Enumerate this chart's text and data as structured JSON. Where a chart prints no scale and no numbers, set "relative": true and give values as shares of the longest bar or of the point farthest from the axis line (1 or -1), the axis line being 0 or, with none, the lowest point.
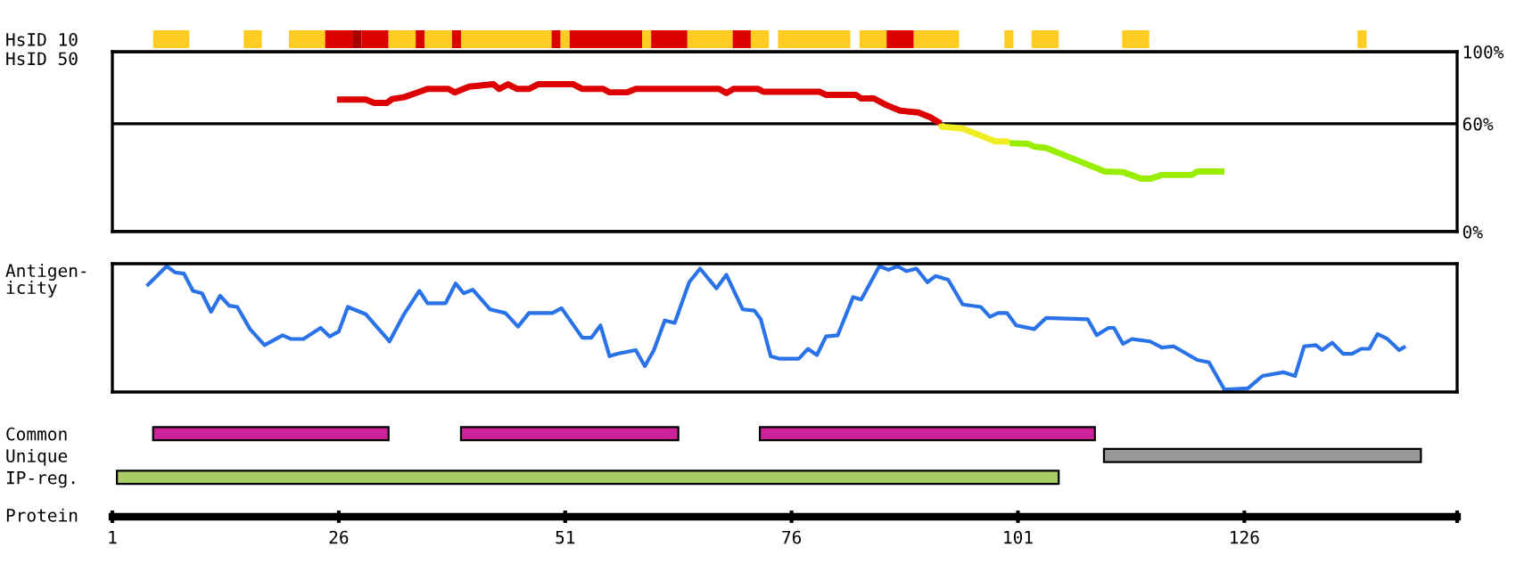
{
  "chart_data": [
    {
      "type": "bar",
      "orientation": "horizontal",
      "categories": [
        "HsID 10"
      ],
      "xlim": [
        1,
        149.5
      ],
      "tick_labels": "y",
      "series": [
        {
          "color": "#ffcc22",
          "values": [
            4
          ],
          "base": [
            5.5
          ]
        },
        {
          "color": "#ffcc22",
          "values": [
            2
          ],
          "base": [
            15.5
          ]
        },
        {
          "color": "#ffcc22",
          "values": [
            4
          ],
          "base": [
            20.5
          ]
        },
        {
          "color": "#dd0000",
          "values": [
            3
          ],
          "base": [
            24.5
          ]
        },
        {
          "color": "#aa0000",
          "values": [
            1
          ],
          "base": [
            27.5
          ]
        },
        {
          "color": "#dd0000",
          "values": [
            3
          ],
          "base": [
            28.5
          ]
        },
        {
          "color": "#ffcc22",
          "values": [
            3
          ],
          "base": [
            31.5
          ]
        },
        {
          "color": "#dd0000",
          "values": [
            1
          ],
          "base": [
            34.5
          ]
        },
        {
          "color": "#ffcc22",
          "values": [
            3
          ],
          "base": [
            35.5
          ]
        },
        {
          "color": "#dd0000",
          "values": [
            1
          ],
          "base": [
            38.5
          ]
        },
        {
          "color": "#ffcc22",
          "values": [
            10
          ],
          "base": [
            39.5
          ]
        },
        {
          "color": "#dd0000",
          "values": [
            1
          ],
          "base": [
            49.5
          ]
        },
        {
          "color": "#ffcc22",
          "values": [
            1
          ],
          "base": [
            50.5
          ]
        },
        {
          "color": "#dd0000",
          "values": [
            8
          ],
          "base": [
            51.5
          ]
        },
        {
          "color": "#ffcc22",
          "values": [
            1
          ],
          "base": [
            59.5
          ]
        },
        {
          "color": "#dd0000",
          "values": [
            4
          ],
          "base": [
            60.5
          ]
        },
        {
          "color": "#ffcc22",
          "values": [
            5
          ],
          "base": [
            64.5
          ]
        },
        {
          "color": "#dd0000",
          "values": [
            2
          ],
          "base": [
            69.5
          ]
        },
        {
          "color": "#ffcc22",
          "values": [
            2
          ],
          "base": [
            71.5
          ]
        },
        {
          "color": "#ffcc22",
          "values": [
            8
          ],
          "base": [
            74.5
          ]
        },
        {
          "color": "#ffcc22",
          "values": [
            3
          ],
          "base": [
            83.5
          ]
        },
        {
          "color": "#dd0000",
          "values": [
            3
          ],
          "base": [
            86.5
          ]
        },
        {
          "color": "#ffcc22",
          "values": [
            5
          ],
          "base": [
            89.5
          ]
        },
        {
          "color": "#ffcc22",
          "values": [
            1
          ],
          "base": [
            99.5
          ]
        },
        {
          "color": "#ffcc22",
          "values": [
            3
          ],
          "base": [
            102.5
          ]
        },
        {
          "color": "#ffcc22",
          "values": [
            3
          ],
          "base": [
            112.5
          ]
        },
        {
          "color": "#ffcc22",
          "values": [
            1
          ],
          "base": [
            138.5
          ]
        }
      ]
    },
    {
      "type": "line",
      "ylabel": "HsID 50",
      "xlim": [
        1,
        149.5
      ],
      "ylim": [
        0,
        100
      ],
      "yticks": [
        {
          "value": 0,
          "label": "0%"
        },
        {
          "value": 60,
          "label": "60%"
        },
        {
          "value": 100,
          "label": "100%"
        }
      ],
      "grid": "y",
      "tick_labels": "y",
      "series": [
        {
          "color": "#dd0000",
          "x": [
            25.8,
            29.0,
            29.9,
            31.3,
            31.9,
            33.2,
            34.5,
            35.8,
            38.1,
            38.8,
            40.4,
            43.1,
            43.7,
            44.7,
            45.7,
            47.0,
            48.0,
            51.9,
            52.9,
            55.2,
            55.9,
            57.8,
            58.8,
            68.0,
            68.8,
            69.6,
            72.3,
            72.9,
            79.1,
            79.8,
            83.1,
            83.7,
            85.1,
            86.4,
            88.0,
            90.0,
            91.3,
            92.5
          ],
          "values": [
            73.4,
            73.4,
            71.5,
            71.5,
            73.7,
            74.7,
            77.0,
            79.3,
            79.3,
            77.4,
            80.6,
            81.9,
            79.3,
            81.9,
            79.3,
            79.3,
            81.9,
            81.9,
            79.3,
            79.3,
            77.4,
            77.4,
            79.3,
            79.3,
            77.0,
            79.3,
            79.3,
            77.7,
            77.7,
            76.0,
            76.0,
            74.0,
            74.0,
            70.5,
            67.2,
            66.2,
            63.6,
            60.0
          ]
        },
        {
          "color": "#eeee22",
          "x": [
            92.5,
            92.6,
            94.9,
            98.5,
            99.8,
            100.1
          ],
          "values": [
            60.0,
            58.3,
            57.3,
            50.1,
            50.1,
            49.2
          ]
        },
        {
          "color": "#99ee00",
          "x": [
            100.1,
            102.1,
            102.8,
            104.1,
            107.7,
            110.6,
            112.6,
            114.6,
            115.7,
            116.9,
            120.2,
            120.8,
            123.8
          ],
          "values": [
            49.2,
            48.8,
            47.2,
            46.5,
            39.3,
            33.4,
            33.1,
            29.5,
            29.5,
            31.5,
            31.5,
            33.4,
            33.4
          ]
        }
      ]
    },
    {
      "type": "line",
      "ylabel": "Antigen-\nicity",
      "relative": true,
      "xlim": [
        1,
        149.5
      ],
      "tick_labels": false,
      "series": [
        {
          "color": "#2a72e8",
          "x": [
            4.8,
            7.0,
            7.9,
            8.9,
            9.9,
            10.9,
            11.9,
            12.9,
            13.9,
            14.8,
            16.2,
            17.8,
            19.8,
            20.7,
            22.1,
            24.0,
            25.0,
            26.0,
            27.0,
            29.0,
            31.6,
            33.2,
            34.9,
            35.8,
            37.8,
            38.9,
            39.8,
            40.8,
            42.7,
            44.4,
            45.8,
            47.0,
            49.6,
            50.6,
            52.9,
            53.9,
            54.9,
            55.9,
            56.8,
            58.8,
            59.8,
            60.8,
            62.0,
            63.1,
            64.7,
            65.9,
            67.7,
            68.8,
            70.6,
            71.9,
            72.6,
            73.7,
            74.6,
            76.8,
            77.8,
            78.8,
            79.8,
            81.1,
            82.8,
            83.7,
            85.7,
            86.7,
            87.7,
            88.7,
            89.8,
            91.0,
            91.9,
            93.3,
            94.9,
            96.9,
            97.9,
            98.8,
            99.8,
            100.8,
            102.8,
            104.1,
            108.7,
            109.7,
            111.0,
            111.6,
            112.6,
            113.6,
            115.6,
            116.9,
            118.2,
            120.8,
            122.1,
            123.8,
            126.4,
            128.0,
            130.3,
            131.6,
            132.6,
            133.9,
            134.6,
            135.7,
            136.9,
            137.9,
            138.9,
            139.8,
            140.7,
            141.8,
            143.1,
            143.8
          ],
          "values": [
            0.84,
            1.0,
            0.95,
            0.94,
            0.8,
            0.78,
            0.63,
            0.76,
            0.68,
            0.67,
            0.49,
            0.36,
            0.44,
            0.41,
            0.41,
            0.5,
            0.43,
            0.47,
            0.67,
            0.61,
            0.39,
            0.61,
            0.8,
            0.7,
            0.7,
            0.86,
            0.78,
            0.81,
            0.65,
            0.62,
            0.51,
            0.62,
            0.62,
            0.66,
            0.42,
            0.42,
            0.52,
            0.27,
            0.29,
            0.32,
            0.19,
            0.32,
            0.56,
            0.54,
            0.87,
            0.98,
            0.82,
            0.93,
            0.65,
            0.64,
            0.57,
            0.27,
            0.25,
            0.25,
            0.33,
            0.28,
            0.43,
            0.44,
            0.75,
            0.73,
            1.0,
            0.97,
            1.0,
            0.96,
            0.98,
            0.87,
            0.92,
            0.89,
            0.69,
            0.67,
            0.59,
            0.62,
            0.62,
            0.52,
            0.49,
            0.58,
            0.57,
            0.44,
            0.5,
            0.5,
            0.37,
            0.41,
            0.39,
            0.34,
            0.35,
            0.24,
            0.22,
            0.0,
            0.01,
            0.11,
            0.14,
            0.11,
            0.35,
            0.36,
            0.32,
            0.38,
            0.29,
            0.29,
            0.33,
            0.33,
            0.45,
            0.41,
            0.32,
            0.35
          ]
        }
      ]
    },
    {
      "type": "bar",
      "orientation": "horizontal",
      "categories": [
        "Common",
        "Unique",
        "IP-reg."
      ],
      "xlabel": "Protein",
      "xlim": [
        1,
        149.5
      ],
      "xticks": [
        1,
        26,
        51,
        76,
        101,
        126,
        {
          "value": 149.5,
          "label": null
        }
      ],
      "series": [
        {
          "color": "#cc2299",
          "values": [
            26,
            null,
            null
          ],
          "base": [
            5.5,
            null,
            null
          ]
        },
        {
          "color": "#cc2299",
          "values": [
            24,
            null,
            null
          ],
          "base": [
            39.5,
            null,
            null
          ]
        },
        {
          "color": "#cc2299",
          "values": [
            37,
            null,
            null
          ],
          "base": [
            72.5,
            null,
            null
          ]
        },
        {
          "color": "#999999",
          "values": [
            null,
            35,
            null
          ],
          "base": [
            null,
            110.5,
            null
          ]
        },
        {
          "color": "#aacc66",
          "values": [
            null,
            null,
            104
          ],
          "base": [
            null,
            null,
            1.5
          ]
        }
      ]
    }
  ]
}
